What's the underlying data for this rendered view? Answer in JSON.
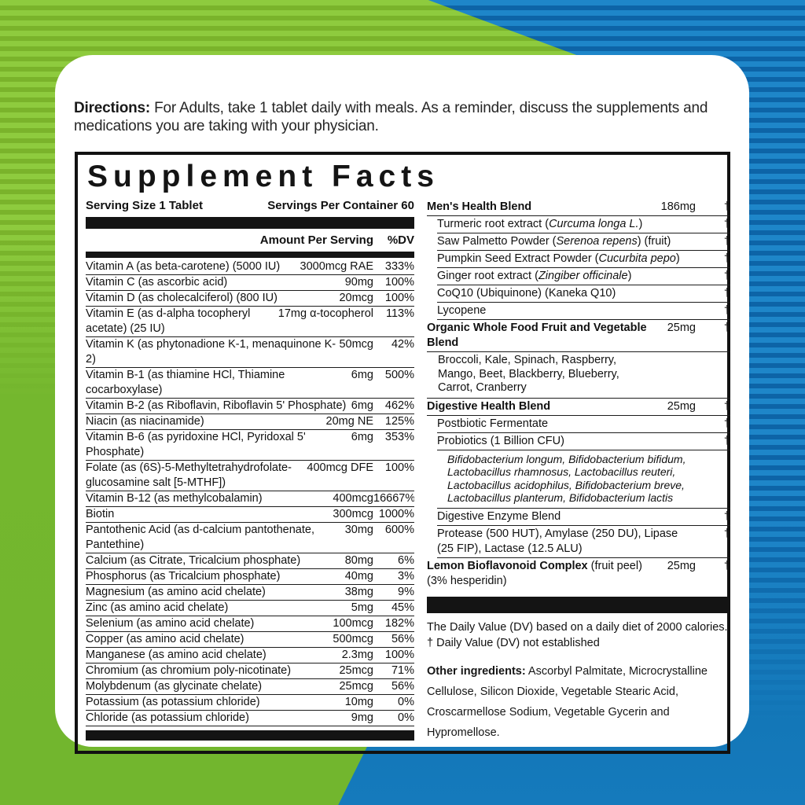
{
  "background": {
    "green_light": "#8ecb3e",
    "green_dark": "#7ab32b",
    "green_solid": "#72b62e",
    "blue_light": "#1e86c9",
    "blue_dark": "#0d64a7",
    "blue_solid": "#1377b8"
  },
  "directions": {
    "label": "Directions:",
    "text": " For Adults, take 1 tablet daily with meals. As a reminder, discuss the supplements and medications you are taking with your physician."
  },
  "facts": {
    "title": "Supplement Facts",
    "serving_size": "Serving Size 1 Tablet",
    "servings_per_container": "Servings Per Container 60",
    "amount_header": "Amount Per Serving",
    "dv_header": "%DV",
    "nutrients": [
      {
        "name": "Vitamin A (as beta-carotene) (5000 IU)",
        "amount": "3000mcg RAE",
        "dv": "333%"
      },
      {
        "name": "Vitamin C (as ascorbic acid)",
        "amount": "90mg",
        "dv": "100%"
      },
      {
        "name": "Vitamin D (as cholecalciferol) (800 IU)",
        "amount": "20mcg",
        "dv": "100%"
      },
      {
        "name": "Vitamin E (as d-alpha tocopheryl acetate) (25 IU)",
        "amount": "17mg α-tocopherol",
        "dv": "113%"
      },
      {
        "name": "Vitamin K (as phytonadione K-1, menaquinone K-2)",
        "amount": "50mcg",
        "dv": "42%"
      },
      {
        "name": "Vitamin B-1 (as thiamine HCl, Thiamine cocarboxylase)",
        "amount": "6mg",
        "dv": "500%"
      },
      {
        "name": "Vitamin B-2 (as Riboflavin, Riboflavin 5' Phosphate)",
        "amount": "6mg",
        "dv": "462%"
      },
      {
        "name": "Niacin (as niacinamide)",
        "amount": "20mg NE",
        "dv": "125%"
      },
      {
        "name": "Vitamin B-6 (as pyridoxine HCl, Pyridoxal 5' Phosphate)",
        "amount": "6mg",
        "dv": "353%"
      },
      {
        "name": "Folate (as (6S)-5-Methyltetrahydrofolate-glucosamine salt [5-MTHF])",
        "amount": "400mcg DFE",
        "dv": "100%"
      },
      {
        "name": "Vitamin B-12 (as methylcobalamin)",
        "amount": "400mcg",
        "dv": "16667%"
      },
      {
        "name": "Biotin",
        "amount": "300mcg",
        "dv": "1000%"
      },
      {
        "name": "Pantothenic Acid (as d-calcium pantothenate, Pantethine)",
        "amount": "30mg",
        "dv": "600%"
      },
      {
        "name": "Calcium (as Citrate, Tricalcium phosphate)",
        "amount": "80mg",
        "dv": "6%"
      },
      {
        "name": "Phosphorus (as Tricalcium phosphate)",
        "amount": "40mg",
        "dv": "3%"
      },
      {
        "name": "Magnesium (as amino acid chelate)",
        "amount": "38mg",
        "dv": "9%"
      },
      {
        "name": "Zinc (as amino acid chelate)",
        "amount": "5mg",
        "dv": "45%"
      },
      {
        "name": "Selenium (as amino acid chelate)",
        "amount": "100mcg",
        "dv": "182%"
      },
      {
        "name": "Copper (as amino acid chelate)",
        "amount": "500mcg",
        "dv": "56%"
      },
      {
        "name": "Manganese (as amino acid chelate)",
        "amount": "2.3mg",
        "dv": "100%"
      },
      {
        "name": "Chromium (as chromium poly-nicotinate)",
        "amount": "25mcg",
        "dv": "71%"
      },
      {
        "name": "Molybdenum (as glycinate chelate)",
        "amount": "25mcg",
        "dv": "56%"
      },
      {
        "name": "Potassium (as potassium chloride)",
        "amount": "10mg",
        "dv": "0%"
      },
      {
        "name": "Chloride (as potassium chloride)",
        "amount": "9mg",
        "dv": "0%"
      }
    ],
    "blends": [
      {
        "type": "blend",
        "parts": [
          {
            "t": "Men's Health Blend",
            "b": true
          }
        ],
        "amount": "186mg",
        "dv": "†"
      },
      {
        "type": "sub",
        "parts": [
          {
            "t": "Turmeric root extract ("
          },
          {
            "t": "Curcuma longa L.",
            "i": true
          },
          {
            "t": ")"
          }
        ],
        "dv": "†"
      },
      {
        "type": "sub",
        "parts": [
          {
            "t": "Saw Palmetto Powder ("
          },
          {
            "t": "Serenoa repens",
            "i": true
          },
          {
            "t": ") (fruit)"
          }
        ],
        "dv": "†"
      },
      {
        "type": "sub",
        "parts": [
          {
            "t": "Pumpkin Seed Extract Powder ("
          },
          {
            "t": "Cucurbita pepo",
            "i": true
          },
          {
            "t": ")"
          }
        ],
        "dv": "†"
      },
      {
        "type": "sub",
        "parts": [
          {
            "t": "Ginger root extract ("
          },
          {
            "t": "Zingiber officinale",
            "i": true
          },
          {
            "t": ")"
          }
        ],
        "dv": "†"
      },
      {
        "type": "sub",
        "parts": [
          {
            "t": "CoQ10 (Ubiquinone) (Kaneka Q10)"
          }
        ],
        "dv": "†"
      },
      {
        "type": "sub",
        "parts": [
          {
            "t": "Lycopene"
          }
        ],
        "dv": "†"
      },
      {
        "type": "blend",
        "parts": [
          {
            "t": "Organic Whole Food Fruit and Vegetable Blend",
            "b": true
          }
        ],
        "amount": "25mg",
        "dv": "†"
      },
      {
        "type": "list",
        "lines": [
          "Broccoli, Kale, Spinach, Raspberry,",
          "Mango,  Beet, Blackberry, Blueberry,",
          "Carrot,  Cranberry"
        ]
      },
      {
        "type": "blend",
        "parts": [
          {
            "t": "Digestive Health Blend",
            "b": true
          }
        ],
        "amount": "25mg",
        "dv": "†"
      },
      {
        "type": "sub",
        "parts": [
          {
            "t": "Postbiotic Fermentate"
          }
        ],
        "dv": "†"
      },
      {
        "type": "sub",
        "parts": [
          {
            "t": "Probiotics (1 Billion CFU)"
          }
        ],
        "dv": "†"
      },
      {
        "type": "species",
        "lines": [
          "Bifidobacterium longum, Bifidobacterium bifidum,",
          "Lactobacillus rhamnosus, Lactobacillus reuteri,",
          "Lactobacillus acidophilus, Bifidobacterium breve,",
          "Lactobacillus planterum, Bifidobacterium lactis"
        ]
      },
      {
        "type": "sub",
        "parts": [
          {
            "t": "Digestive Enzyme Blend"
          }
        ],
        "dv": "†"
      },
      {
        "type": "sub2",
        "parts": [
          {
            "t": "Protease (500 HUT), Amylase (250 DU), Lipase (25 FIP), Lactase (12.5 ALU)"
          }
        ],
        "dv": "†"
      },
      {
        "type": "blend2",
        "parts": [
          {
            "t": "Lemon Bioflavonoid Complex",
            "b": true
          },
          {
            "t": " (fruit peel)"
          }
        ],
        "line2": "(3% hesperidin)",
        "amount": "25mg",
        "dv": "†"
      }
    ],
    "footnotes": [
      "The Daily Value (DV) based on a daily diet of 2000 calories.",
      "† Daily Value (DV) not established"
    ],
    "other_ingredients": {
      "label": "Other ingredients:",
      "text": " Ascorbyl Palmitate, Microcrystalline Cellulose, Silicon Dioxide, Vegetable Stearic Acid, Croscarmellose Sodium, Vegetable Gycerin and Hypromellose."
    }
  }
}
